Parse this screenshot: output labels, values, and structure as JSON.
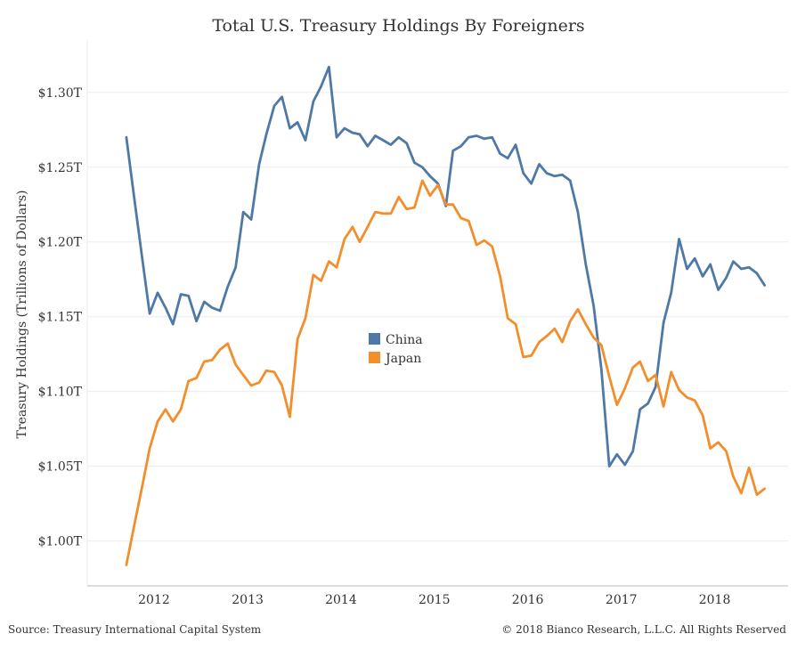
{
  "title": "Total U.S. Treasury Holdings By Foreigners",
  "footer": {
    "source": "Source: Treasury International Capital System",
    "copyright": "© 2018 Bianco Research, L.L.C. All Rights Reserved"
  },
  "colors": {
    "china": "#4e79a7",
    "japan": "#f28e2b",
    "grid": "#ececec",
    "axis": "#bbbbbb"
  },
  "chart_data": {
    "type": "line",
    "title": "Total U.S. Treasury Holdings By Foreigners",
    "xlabel": "",
    "ylabel": "Treasury Holdings (Trillions of Dollars)",
    "xlim": [
      "2011-04-15",
      "2018-10-15"
    ],
    "ylim": [
      0.97,
      1.335
    ],
    "yticks": [
      {
        "value": 1.0,
        "label": "$1.00T"
      },
      {
        "value": 1.05,
        "label": "$1.05T"
      },
      {
        "value": 1.1,
        "label": "$1.10T"
      },
      {
        "value": 1.15,
        "label": "$1.15T"
      },
      {
        "value": 1.2,
        "label": "$1.20T"
      },
      {
        "value": 1.25,
        "label": "$1.25T"
      },
      {
        "value": 1.3,
        "label": "$1.30T"
      }
    ],
    "xticks": [
      {
        "value": "2012-01-01",
        "label": "2012"
      },
      {
        "value": "2013-01-01",
        "label": "2013"
      },
      {
        "value": "2014-01-01",
        "label": "2014"
      },
      {
        "value": "2015-01-01",
        "label": "2015"
      },
      {
        "value": "2016-01-01",
        "label": "2016"
      },
      {
        "value": "2017-01-01",
        "label": "2017"
      },
      {
        "value": "2018-01-01",
        "label": "2018"
      }
    ],
    "grid": true,
    "legend": "center",
    "x": [
      "2011-09",
      "2011-10",
      "2011-11",
      "2011-12",
      "2012-01",
      "2012-02",
      "2012-03",
      "2012-04",
      "2012-05",
      "2012-06",
      "2012-07",
      "2012-08",
      "2012-09",
      "2012-10",
      "2012-11",
      "2012-12",
      "2013-01",
      "2013-02",
      "2013-03",
      "2013-04",
      "2013-05",
      "2013-06",
      "2013-07",
      "2013-08",
      "2013-09",
      "2013-10",
      "2013-11",
      "2013-12",
      "2014-01",
      "2014-02",
      "2014-03",
      "2014-04",
      "2014-05",
      "2014-06",
      "2014-07",
      "2014-08",
      "2014-09",
      "2014-10",
      "2014-11",
      "2014-12",
      "2015-01",
      "2015-02",
      "2015-03",
      "2015-04",
      "2015-05",
      "2015-06",
      "2015-07",
      "2015-08",
      "2015-09",
      "2015-10",
      "2015-11",
      "2015-12",
      "2016-01",
      "2016-02",
      "2016-03",
      "2016-04",
      "2016-05",
      "2016-06",
      "2016-07",
      "2016-08",
      "2016-09",
      "2016-10",
      "2016-11",
      "2016-12",
      "2017-01",
      "2017-02",
      "2017-03",
      "2017-04",
      "2017-05",
      "2017-06",
      "2017-07",
      "2017-08",
      "2017-09",
      "2017-10",
      "2017-11",
      "2017-12",
      "2018-01",
      "2018-02",
      "2018-03",
      "2018-04",
      "2018-05",
      "2018-06",
      "2018-07"
    ],
    "series": [
      {
        "name": "China",
        "values": [
          1.27,
          1.23,
          1.19,
          1.152,
          1.166,
          1.156,
          1.145,
          1.165,
          1.164,
          1.147,
          1.16,
          1.156,
          1.154,
          1.17,
          1.183,
          1.22,
          1.215,
          1.252,
          1.272,
          1.291,
          1.297,
          1.276,
          1.28,
          1.268,
          1.294,
          1.304,
          1.317,
          1.27,
          1.276,
          1.273,
          1.272,
          1.264,
          1.271,
          1.268,
          1.265,
          1.27,
          1.266,
          1.253,
          1.25,
          1.244,
          1.239,
          1.224,
          1.261,
          1.264,
          1.27,
          1.271,
          1.269,
          1.27,
          1.259,
          1.256,
          1.265,
          1.246,
          1.239,
          1.252,
          1.246,
          1.244,
          1.245,
          1.241,
          1.22,
          1.185,
          1.157,
          1.115,
          1.05,
          1.058,
          1.051,
          1.06,
          1.088,
          1.092,
          1.103,
          1.146,
          1.166,
          1.202,
          1.182,
          1.189,
          1.177,
          1.185,
          1.168,
          1.176,
          1.187,
          1.182,
          1.183,
          1.179,
          1.171
        ]
      },
      {
        "name": "Japan",
        "values": [
          0.984,
          1.01,
          1.036,
          1.062,
          1.08,
          1.088,
          1.08,
          1.088,
          1.107,
          1.109,
          1.12,
          1.121,
          1.128,
          1.132,
          1.118,
          1.111,
          1.104,
          1.106,
          1.114,
          1.113,
          1.104,
          1.083,
          1.135,
          1.149,
          1.178,
          1.174,
          1.187,
          1.183,
          1.202,
          1.21,
          1.2,
          1.21,
          1.22,
          1.219,
          1.219,
          1.23,
          1.222,
          1.223,
          1.241,
          1.231,
          1.238,
          1.225,
          1.225,
          1.216,
          1.214,
          1.198,
          1.201,
          1.197,
          1.177,
          1.149,
          1.145,
          1.123,
          1.124,
          1.133,
          1.137,
          1.142,
          1.133,
          1.147,
          1.155,
          1.145,
          1.136,
          1.131,
          1.11,
          1.091,
          1.102,
          1.116,
          1.12,
          1.107,
          1.111,
          1.09,
          1.113,
          1.101,
          1.096,
          1.094,
          1.084,
          1.062,
          1.066,
          1.06,
          1.043,
          1.032,
          1.049,
          1.031,
          1.035
        ]
      }
    ]
  }
}
